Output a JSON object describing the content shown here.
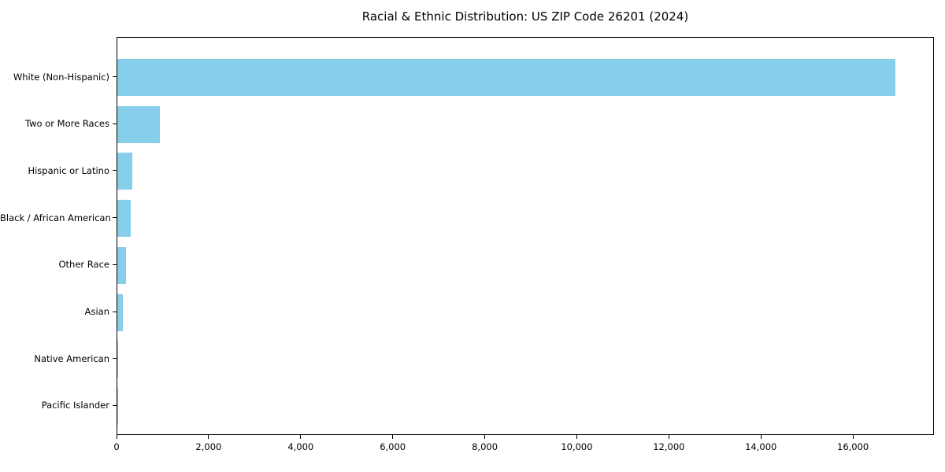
{
  "chart_data": {
    "type": "bar",
    "orientation": "horizontal",
    "title": "Racial & Ethnic Distribution: US ZIP Code 26201 (2024)",
    "categories": [
      "White (Non-Hispanic)",
      "Two or More Races",
      "Hispanic or Latino",
      "Black / African American",
      "Other Race",
      "Asian",
      "Native American",
      "Pacific Islander"
    ],
    "values": [
      16900,
      920,
      325,
      290,
      190,
      120,
      15,
      5
    ],
    "xlabel": "",
    "ylabel": "",
    "xlim": [
      0,
      17760
    ],
    "x_tick_values": [
      0,
      2000,
      4000,
      6000,
      8000,
      10000,
      12000,
      14000,
      16000
    ],
    "x_tick_labels": [
      "0",
      "2,000",
      "4,000",
      "6,000",
      "8,000",
      "10,000",
      "12,000",
      "14,000",
      "16,000"
    ],
    "bar_color": "#87CEEB",
    "background_color": "#ffffff",
    "text_color": "#000000",
    "grid": false,
    "legend": "none"
  }
}
